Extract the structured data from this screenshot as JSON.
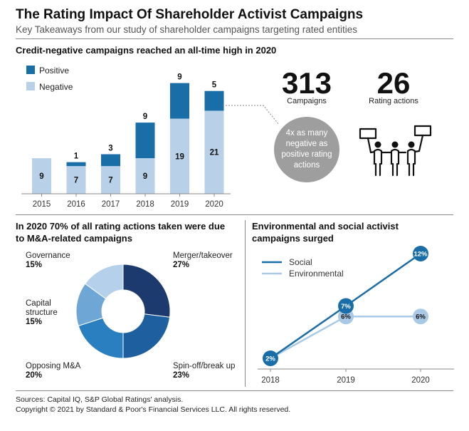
{
  "header": {
    "title": "The Rating Impact Of Shareholder Activist Campaigns",
    "subtitle": "Key Takeaways from our study of shareholder campaigns targeting rated entities"
  },
  "colors": {
    "positive": "#1a6ea8",
    "negative": "#b8d1e8",
    "social": "#1a6ea8",
    "environmental": "#a9c9e6",
    "bubble": "#9e9e9e",
    "pie": [
      "#1d3a6e",
      "#1e5fa0",
      "#2a7fc0",
      "#6ea7d6",
      "#b5d0ea"
    ]
  },
  "stats": {
    "campaigns_value": "313",
    "campaigns_label": "Campaigns",
    "rating_actions_value": "26",
    "rating_actions_label": "Rating actions",
    "bubble_text": [
      "4x as many",
      "negative as",
      "positive rating",
      "actions"
    ],
    "illustration_icon": "protesters-with-signs-icon"
  },
  "sections": {
    "bar_title": "Credit-negative campaigns reached an all-time high in 2020",
    "pie_title": [
      "In 2020 70% of all rating actions taken were due",
      "to M&A-related campaigns"
    ],
    "line_title": [
      "Environmental and social activist",
      "campaigns surged"
    ]
  },
  "chart_data": [
    {
      "type": "bar",
      "stacked": true,
      "title": "Credit-negative campaigns reached an all-time high in 2020",
      "categories": [
        "2015",
        "2016",
        "2017",
        "2018",
        "2019",
        "2020"
      ],
      "series": [
        {
          "name": "Negative",
          "values": [
            9,
            7,
            7,
            9,
            19,
            21
          ]
        },
        {
          "name": "Positive",
          "values": [
            0,
            1,
            3,
            9,
            9,
            5
          ]
        }
      ],
      "data_labels": {
        "Negative": [
          "9",
          "7",
          "7",
          "9",
          "19",
          "21"
        ],
        "Positive": [
          "",
          "1",
          "3",
          "9",
          "9",
          "5"
        ]
      },
      "legend": [
        "Positive",
        "Negative"
      ],
      "legend_position": "top-left",
      "grid": false
    },
    {
      "type": "pie",
      "donut": true,
      "title": "In 2020 70% of all rating actions taken were due to M&A-related campaigns",
      "slices": [
        {
          "name": "Merger/takeover",
          "value": 27,
          "label": "27%"
        },
        {
          "name": "Spin-off/break up",
          "value": 23,
          "label": "23%"
        },
        {
          "name": "Opposing M&A",
          "value": 20,
          "label": "20%"
        },
        {
          "name": "Capital structure",
          "value": 15,
          "label": "15%"
        },
        {
          "name": "Governance",
          "value": 15,
          "label": "15%"
        }
      ]
    },
    {
      "type": "line",
      "title": "Environmental and social activist campaigns surged",
      "x": [
        "2018",
        "2019",
        "2020"
      ],
      "series": [
        {
          "name": "Social",
          "values": [
            2,
            7,
            12
          ],
          "labels": [
            "2%",
            "7%",
            "12%"
          ]
        },
        {
          "name": "Environmental",
          "values": [
            2,
            6,
            6
          ],
          "labels": [
            "",
            "6%",
            "6%"
          ]
        }
      ],
      "ylim": [
        0,
        13
      ],
      "legend_position": "top-left",
      "grid": false
    }
  ],
  "footer": {
    "sources": "Sources: Capital IQ, S&P Global Ratings' analysis.",
    "copyright": "Copyright © 2021 by Standard & Poor's Financial Services LLC. All rights reserved."
  }
}
